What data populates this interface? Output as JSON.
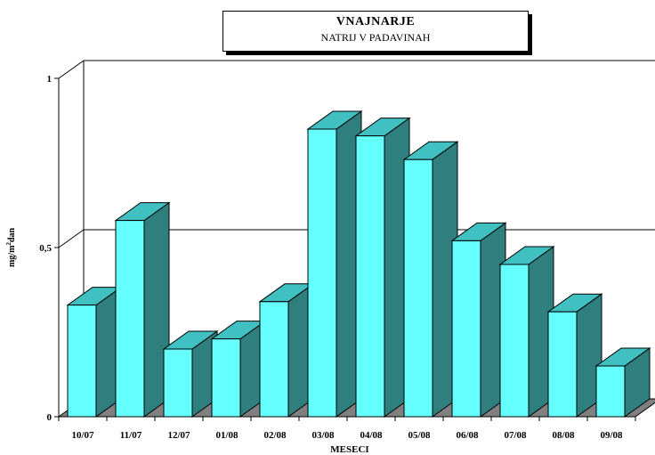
{
  "chart_data": {
    "type": "bar",
    "title": "VNAJNARJE",
    "subtitle": "NATRIJ V PADAVINAH",
    "xlabel": "MESECI",
    "ylabel_main": "mg/m",
    "ylabel_sup": "2",
    "ylabel_rest": "dan",
    "ylim": [
      0,
      1
    ],
    "yticks": [
      "0",
      "0,5",
      "1"
    ],
    "grid": true,
    "categories": [
      "10/07",
      "11/07",
      "12/07",
      "01/08",
      "02/08",
      "03/08",
      "04/08",
      "05/08",
      "06/08",
      "07/08",
      "08/08",
      "09/08"
    ],
    "values": [
      0.33,
      0.58,
      0.2,
      0.23,
      0.34,
      0.85,
      0.83,
      0.76,
      0.52,
      0.45,
      0.31,
      0.15
    ],
    "colors": {
      "front": "#66FFFF",
      "side": "#2F7F7F",
      "top": "#40C0C0",
      "floor": "#808080"
    }
  }
}
